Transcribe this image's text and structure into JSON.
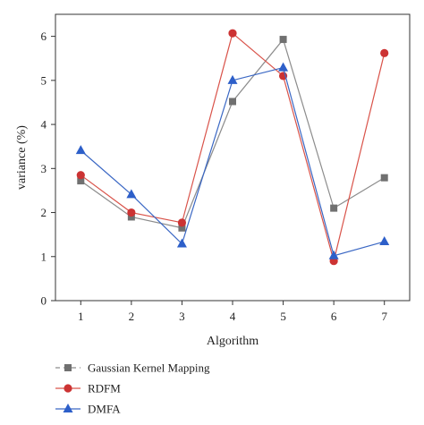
{
  "chart_data": {
    "type": "line",
    "title": "",
    "xlabel": "Algorithm",
    "ylabel": "variance (%)",
    "x": [
      1,
      2,
      3,
      4,
      5,
      6,
      7
    ],
    "xticks": [
      "1",
      "2",
      "3",
      "4",
      "5",
      "6",
      "7"
    ],
    "xlim": [
      0.5,
      7.5
    ],
    "ylim": [
      0,
      6.5
    ],
    "yticks": [
      "0",
      "1",
      "2",
      "3",
      "4",
      "5",
      "6"
    ],
    "grid": false,
    "legend_position": "below-left",
    "series": [
      {
        "name": "Gaussian Kernel Mapping",
        "marker": "square",
        "line_style": "dashed",
        "line_color": "#8c8c8c",
        "marker_color": "#707070",
        "values": [
          2.72,
          1.9,
          1.65,
          4.52,
          5.93,
          2.1,
          2.79
        ]
      },
      {
        "name": "RDFM",
        "marker": "circle",
        "line_style": "solid",
        "line_color": "#d9534a",
        "marker_color": "#cc3333",
        "values": [
          2.85,
          2.0,
          1.77,
          6.07,
          5.1,
          0.9,
          5.62
        ]
      },
      {
        "name": "DMFA",
        "marker": "triangle",
        "line_style": "solid",
        "line_color": "#3a67c4",
        "marker_color": "#2d5fc9",
        "values": [
          3.41,
          2.41,
          1.29,
          5.0,
          5.29,
          1.02,
          1.34
        ]
      }
    ]
  }
}
